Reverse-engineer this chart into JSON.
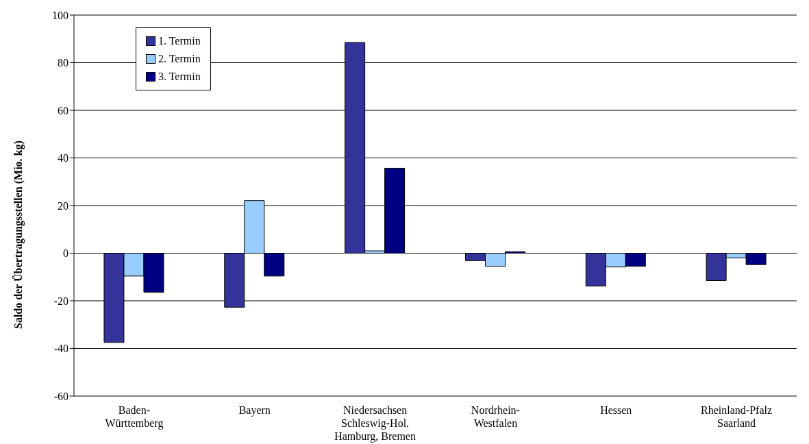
{
  "chart_data": {
    "type": "bar",
    "ylabel": "Saldo der Übertragungsstellen (Mio. kg)",
    "categories": [
      "Baden-\nWürttemberg",
      "Bayern",
      "Niedersachsen\nSchleswig-Hol.\nHamburg, Bremen",
      "Nordrhein-\nWestfalen",
      "Hessen",
      "Rheinland-Pfalz\nSaarland"
    ],
    "series": [
      {
        "name": "1. Termin",
        "color": "#333399",
        "values": [
          -37.5,
          -22.7,
          88.5,
          -3.1,
          -13.8,
          -11.5
        ]
      },
      {
        "name": "2. Termin",
        "color": "#99ccff",
        "values": [
          -9.6,
          22.1,
          1,
          -5.5,
          -5.8,
          -2
        ]
      },
      {
        "name": "3. Termin",
        "color": "#000080",
        "values": [
          -16.4,
          -9.6,
          35.7,
          0.6,
          -5.5,
          -4.8
        ]
      }
    ],
    "ylim": [
      -60,
      100
    ],
    "yticks": [
      -60,
      -40,
      -20,
      0,
      20,
      40,
      60,
      80,
      100
    ],
    "grid": "y",
    "legend": "top left"
  }
}
